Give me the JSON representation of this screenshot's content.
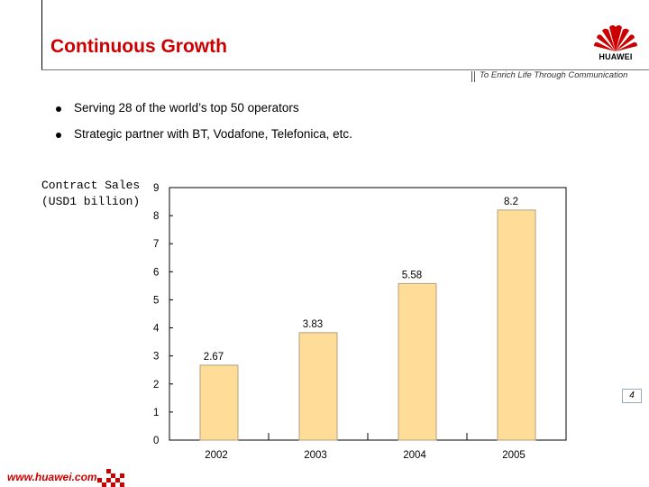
{
  "header": {
    "title": "Continuous Growth",
    "logo_text": "HUAWEI",
    "slogan": "To Enrich Life Through Communication"
  },
  "bullets": [
    "Serving 28 of the world’s top 50 operators",
    "Strategic partner with BT, Vodafone, Telefonica, etc."
  ],
  "footer": {
    "url": "www.huawei.com",
    "page_number": "4"
  },
  "colors": {
    "title": "#cc0000",
    "bar_fill": "#ffdd99",
    "bar_stroke": "#b0a080"
  },
  "chart_data": {
    "type": "bar",
    "title": "",
    "ylabel": "Contract Sales\n(USD1 billion)",
    "xlabel": "",
    "categories": [
      "2002",
      "2003",
      "2004",
      "2005"
    ],
    "values": [
      2.67,
      3.83,
      5.58,
      8.2
    ],
    "value_labels": [
      "2.67",
      "3.83",
      "5.58",
      "8.2"
    ],
    "yticks": [
      "0",
      "1",
      "2",
      "3",
      "4",
      "5",
      "6",
      "7",
      "8",
      "9"
    ],
    "ylim": [
      0,
      9
    ],
    "grid": false,
    "legend": "none"
  }
}
